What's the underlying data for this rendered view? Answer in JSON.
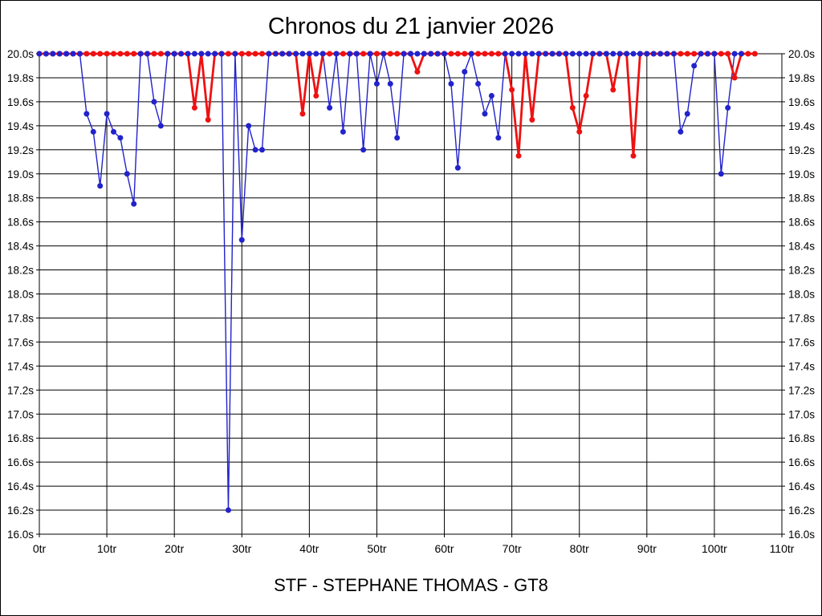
{
  "header": {
    "title": "Chronos du 21 janvier 2026"
  },
  "footer": {
    "caption": "STF - STEPHANE THOMAS - GT8"
  },
  "chart_data": {
    "type": "line",
    "title": "Chronos du 21 janvier 2026",
    "caption": "STF - STEPHANE THOMAS - GT8",
    "grid": true,
    "legend": "none",
    "x_axis": {
      "unit": "tr",
      "min": 0,
      "max": 110,
      "tick_step": 10,
      "tick_labels": [
        "0tr",
        "10tr",
        "20tr",
        "30tr",
        "40tr",
        "50tr",
        "60tr",
        "70tr",
        "80tr",
        "90tr",
        "100tr",
        "110tr"
      ]
    },
    "y_axis": {
      "unit": "s",
      "min": 16.0,
      "max": 20.0,
      "tick_step": 0.2,
      "tick_labels": [
        "20.0s",
        "19.8s",
        "19.6s",
        "19.4s",
        "19.2s",
        "19.0s",
        "18.8s",
        "18.6s",
        "18.4s",
        "18.2s",
        "18.0s",
        "17.8s",
        "17.6s",
        "17.4s",
        "17.2s",
        "17.0s",
        "16.8s",
        "16.6s",
        "16.4s",
        "16.2s",
        "16.0s"
      ],
      "labels_on_both_sides": true
    },
    "clamp_note": "values capped at 20.0s line",
    "series": [
      {
        "name": "serie-rouge",
        "color": "#ee1111",
        "line_width": 2.8,
        "x_start": 0,
        "values": [
          20,
          20,
          20,
          20,
          20,
          20,
          20,
          20,
          20,
          20,
          20,
          20,
          20,
          20,
          20,
          20,
          20,
          20,
          20,
          20,
          20,
          20,
          20,
          19.55,
          20,
          19.45,
          20,
          20,
          20,
          20,
          20,
          20,
          20,
          20,
          20,
          20,
          20,
          20,
          20,
          19.5,
          20,
          19.65,
          20,
          20,
          20,
          20,
          20,
          20,
          20,
          20,
          20,
          20,
          20,
          20,
          20,
          20,
          19.85,
          20,
          20,
          20,
          20,
          20,
          20,
          20,
          20,
          20,
          20,
          20,
          20,
          20,
          19.7,
          19.15,
          20,
          19.45,
          20,
          20,
          20,
          20,
          20,
          19.55,
          19.35,
          19.65,
          20,
          20,
          20,
          19.7,
          20,
          20,
          19.15,
          20,
          20,
          20,
          20,
          20,
          20,
          20,
          20,
          20,
          20,
          20,
          20,
          20,
          20,
          19.8,
          20,
          20,
          20
        ]
      },
      {
        "name": "serie-bleue",
        "color": "#2222cc",
        "line_width": 1.4,
        "x_start": 0,
        "values": [
          20,
          20,
          20,
          20,
          20,
          20,
          20,
          19.5,
          19.35,
          18.9,
          19.5,
          19.35,
          19.3,
          19,
          18.75,
          20,
          20,
          19.6,
          19.4,
          20,
          20,
          20,
          20,
          20,
          20,
          20,
          20,
          20,
          16.2,
          20,
          18.45,
          19.4,
          19.2,
          19.2,
          20,
          20,
          20,
          20,
          20,
          20,
          20,
          20,
          20,
          19.55,
          20,
          19.35,
          20,
          20,
          19.2,
          20,
          19.75,
          20,
          19.75,
          19.3,
          20,
          20,
          20,
          20,
          20,
          20,
          20,
          19.75,
          19.05,
          19.85,
          20,
          19.75,
          19.5,
          19.65,
          19.3,
          20,
          20,
          20,
          20,
          20,
          20,
          20,
          20,
          20,
          20,
          20,
          20,
          20,
          20,
          20,
          20,
          20,
          20,
          20,
          20,
          20,
          20,
          20,
          20,
          20,
          20,
          19.35,
          19.5,
          19.9,
          20,
          20,
          20,
          19,
          19.55,
          20,
          20
        ]
      }
    ]
  }
}
